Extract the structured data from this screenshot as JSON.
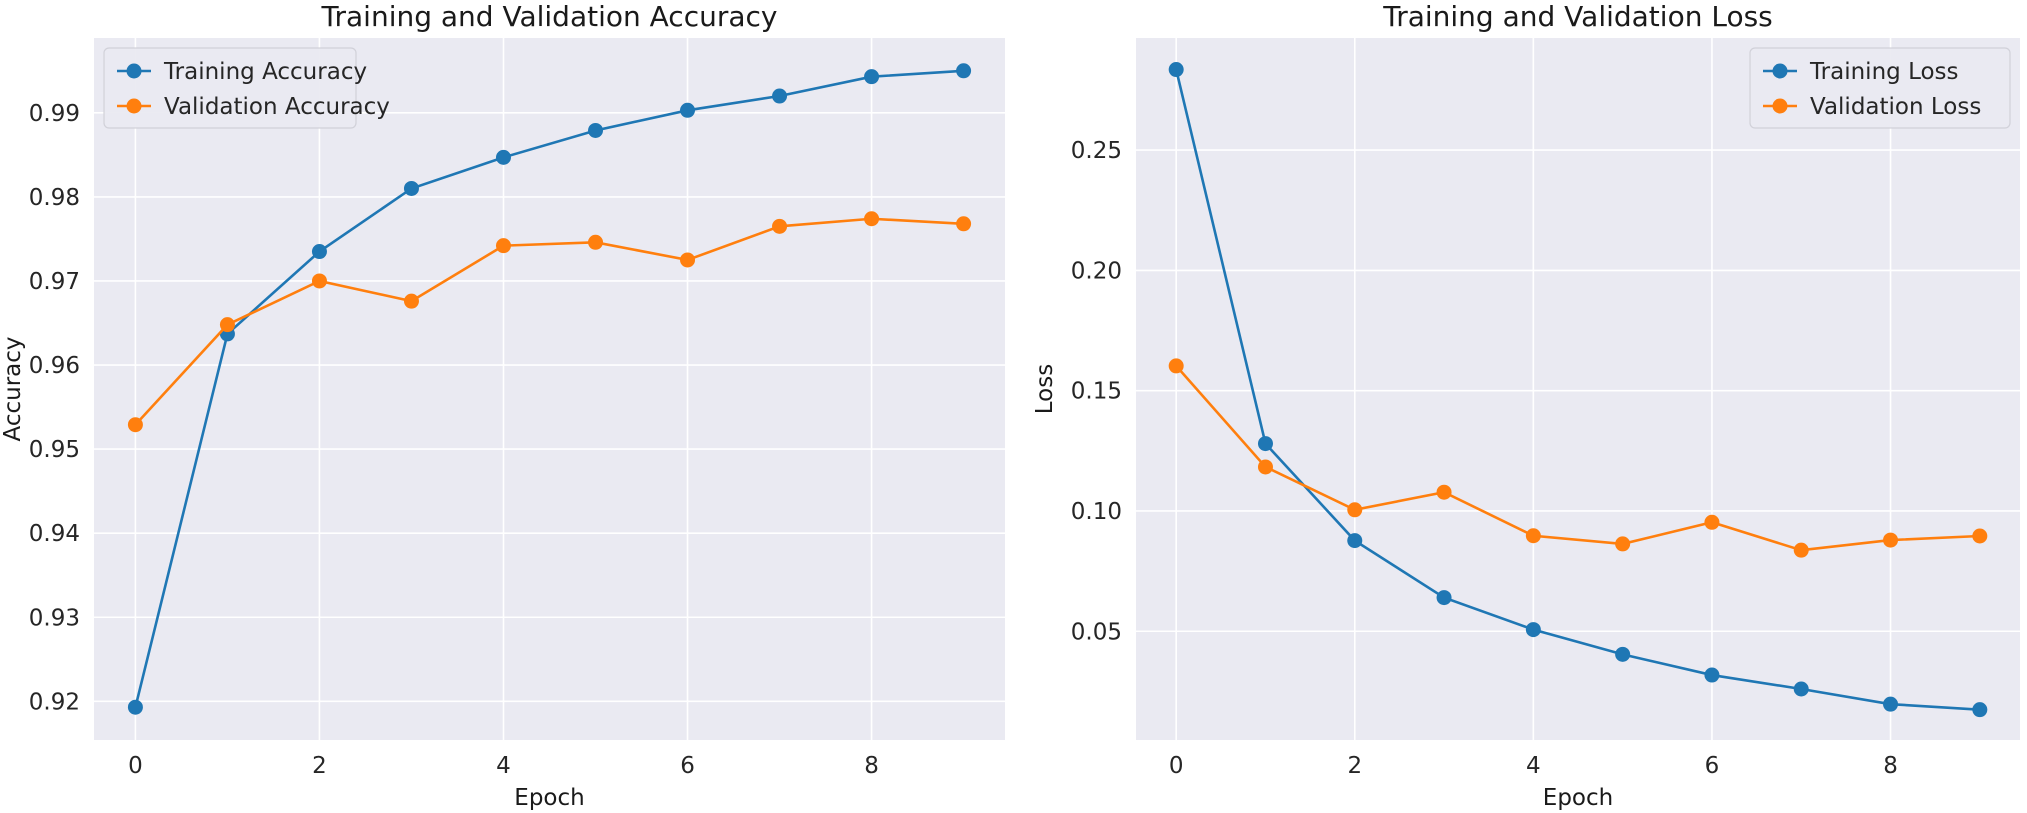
{
  "chart_data": [
    {
      "type": "line",
      "title": "Training and Validation Accuracy",
      "xlabel": "Epoch",
      "ylabel": "Accuracy",
      "x": [
        0,
        1,
        2,
        3,
        4,
        5,
        6,
        7,
        8,
        9
      ],
      "xlim": [
        -0.45,
        9.45
      ],
      "ylim": [
        0.9154,
        0.9989
      ],
      "xticks": [
        0,
        2,
        4,
        6,
        8
      ],
      "yticks": [
        0.92,
        0.93,
        0.94,
        0.95,
        0.96,
        0.97,
        0.98,
        0.99
      ],
      "ytick_labels": [
        "0.92",
        "0.93",
        "0.94",
        "0.95",
        "0.96",
        "0.97",
        "0.98",
        "0.99"
      ],
      "grid": true,
      "legend_position": "top-left",
      "series": [
        {
          "name": "Training Accuracy",
          "color": "#1f77b4",
          "values": [
            0.9193,
            0.9637,
            0.9735,
            0.981,
            0.9847,
            0.9879,
            0.9903,
            0.992,
            0.9943,
            0.995
          ]
        },
        {
          "name": "Validation Accuracy",
          "color": "#ff7f0e",
          "values": [
            0.9529,
            0.9648,
            0.97,
            0.9676,
            0.9742,
            0.9746,
            0.9725,
            0.9765,
            0.9774,
            0.9768
          ]
        }
      ]
    },
    {
      "type": "line",
      "title": "Training and Validation Loss",
      "xlabel": "Epoch",
      "ylabel": "Loss",
      "x": [
        0,
        1,
        2,
        3,
        4,
        5,
        6,
        7,
        8,
        9
      ],
      "xlim": [
        -0.45,
        9.45
      ],
      "ylim": [
        0.0048,
        0.2966
      ],
      "xticks": [
        0,
        2,
        4,
        6,
        8
      ],
      "yticks": [
        0.05,
        0.1,
        0.15,
        0.2,
        0.25
      ],
      "ytick_labels": [
        "0.05",
        "0.10",
        "0.15",
        "0.20",
        "0.25"
      ],
      "grid": true,
      "legend_position": "top-right",
      "series": [
        {
          "name": "Training Loss",
          "color": "#1f77b4",
          "values": [
            0.2835,
            0.128,
            0.0877,
            0.064,
            0.0507,
            0.0404,
            0.0318,
            0.026,
            0.0197,
            0.0174
          ]
        },
        {
          "name": "Validation Loss",
          "color": "#ff7f0e",
          "values": [
            0.1603,
            0.1183,
            0.1005,
            0.1078,
            0.0897,
            0.0863,
            0.0953,
            0.0837,
            0.0879,
            0.0896
          ]
        }
      ]
    }
  ]
}
